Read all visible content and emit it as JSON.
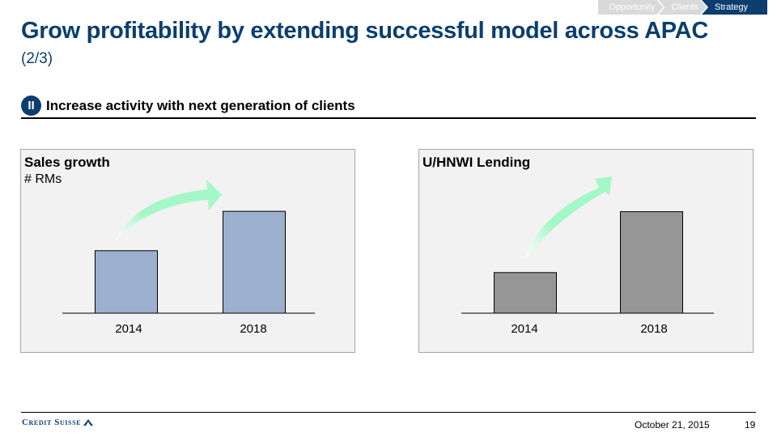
{
  "nav": {
    "items": [
      "Opportunity",
      "Clients",
      "Strategy"
    ],
    "active": "Strategy"
  },
  "header": {
    "title": "Grow profitability by extending successful model across APAC",
    "subtitle": "(2/3)"
  },
  "section": {
    "badge": "II",
    "heading": "Increase activity with next generation of clients"
  },
  "colors": {
    "brand": "#0b3e6f",
    "bar_left": "#9ab0ce",
    "bar_right": "#969696",
    "arrow": "#a4f7c6"
  },
  "chart_data": [
    {
      "type": "bar",
      "title": "Sales growth",
      "ylabel": "# RMs",
      "categories": [
        "2014",
        "2018"
      ],
      "values": [
        1.0,
        1.63
      ],
      "ylim": [
        0,
        1.8
      ],
      "grid": false,
      "annotation": "growth-arrow"
    },
    {
      "type": "bar",
      "title": "U/HNWI Lending",
      "ylabel": "",
      "categories": [
        "2014",
        "2018"
      ],
      "values": [
        1.0,
        2.5
      ],
      "ylim": [
        0,
        2.77
      ],
      "grid": false,
      "annotation": "growth-arrow"
    }
  ],
  "footer": {
    "brand": "Credit Suisse",
    "date": "October 21, 2015",
    "page": "19"
  }
}
